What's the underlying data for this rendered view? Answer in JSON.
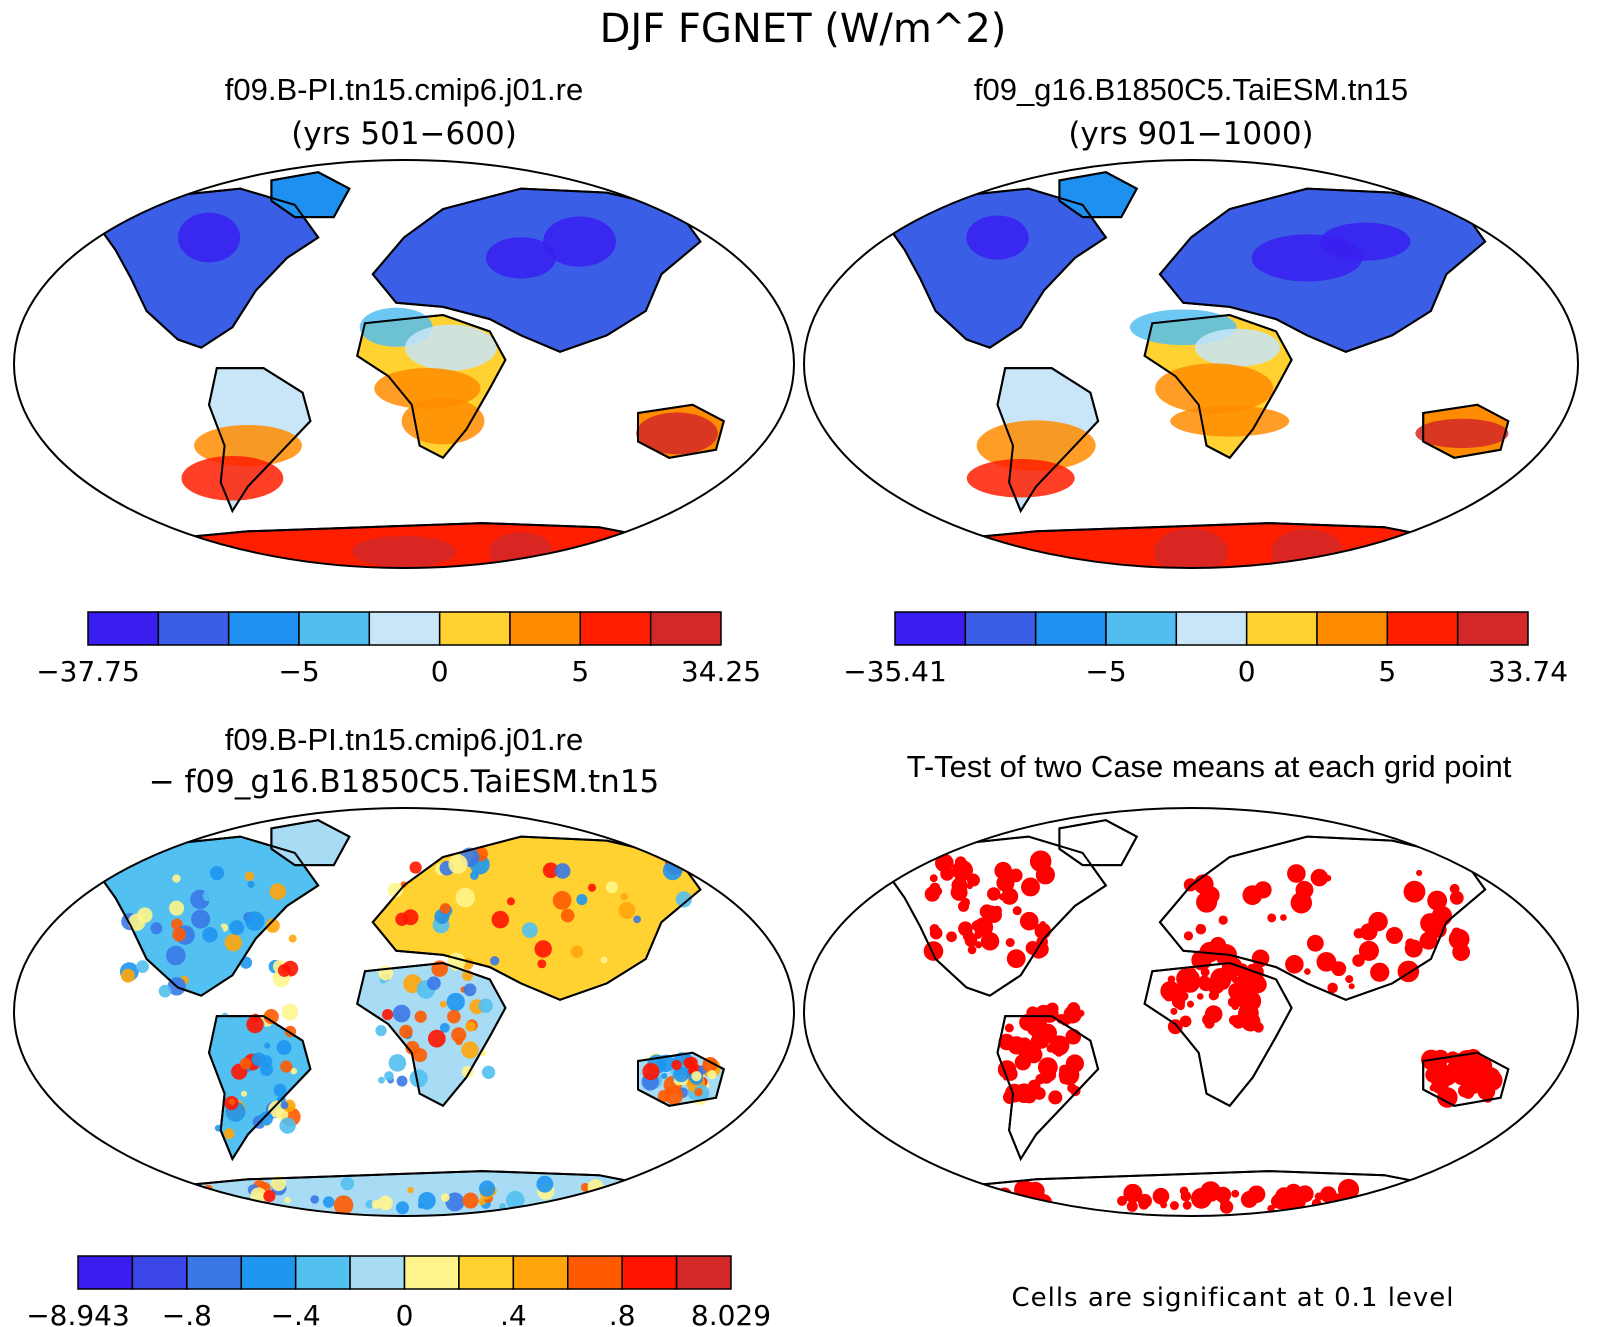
{
  "figure_title": "DJF FGNET (W/m^2)",
  "panels": [
    {
      "id": "p1",
      "title_line1": "f09.B-PI.tn15.cmip6.j01.re",
      "title_line2": "(yrs 501−600)",
      "map_type": "continents-sequential",
      "colorbar": {
        "colors": [
          "#3a1ef0",
          "#3a5ee6",
          "#1e90f0",
          "#52bef0",
          "#c8e6f8",
          "#ffd232",
          "#ff8c00",
          "#ff1e00",
          "#d22828"
        ],
        "tick_labels": [
          "−37.75",
          "−5",
          "0",
          "5",
          "34.25"
        ],
        "tick_at_boundary": [
          0,
          3,
          5,
          7,
          9
        ]
      }
    },
    {
      "id": "p2",
      "title_line1": "f09_g16.B1850C5.TaiESM.tn15",
      "title_line2": "(yrs 901−1000)",
      "map_type": "continents-sequential",
      "colorbar": {
        "colors": [
          "#3a1ef0",
          "#3a5ee6",
          "#1e90f0",
          "#52bef0",
          "#c8e6f8",
          "#ffd232",
          "#ff8c00",
          "#ff1e00",
          "#d22828"
        ],
        "tick_labels": [
          "−35.41",
          "−5",
          "0",
          "5",
          "33.74"
        ],
        "tick_at_boundary": [
          0,
          3,
          5,
          7,
          9
        ]
      }
    },
    {
      "id": "p3",
      "title_line1": "f09.B-PI.tn15.cmip6.j01.re",
      "title_line2": "− f09_g16.B1850C5.TaiESM.tn15",
      "map_type": "continents-difference",
      "colorbar": {
        "colors": [
          "#3a1ef0",
          "#3a46e6",
          "#3a78e6",
          "#1e96f0",
          "#52c0f0",
          "#a8dcf4",
          "#fff58c",
          "#ffd232",
          "#ffa50a",
          "#ff5a00",
          "#ff1400",
          "#d22828"
        ],
        "tick_labels": [
          "−8.943",
          "−.8",
          "−.4",
          "0",
          ".4",
          ".8",
          "8.029"
        ],
        "tick_at_boundary": [
          0,
          2,
          4,
          6,
          8,
          10,
          12
        ]
      }
    },
    {
      "id": "p4",
      "title_line1": "T-Test of two Case means at each grid point",
      "title_line2": "",
      "map_type": "significance",
      "note": "Cells are significant at 0.1 level"
    }
  ]
}
